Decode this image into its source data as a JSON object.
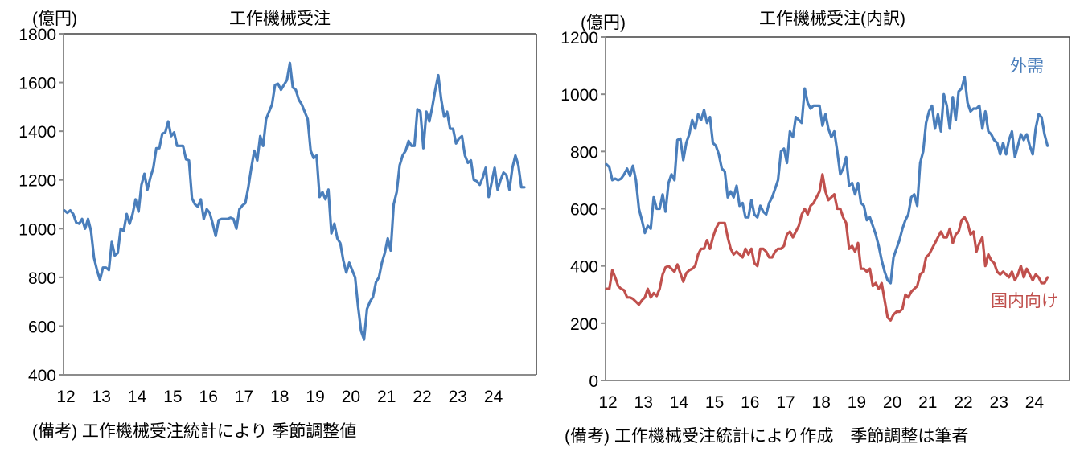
{
  "chart_data": [
    {
      "type": "line",
      "title": "工作機械受注",
      "unit_label": "(億円)",
      "xlabel": "",
      "ylabel": "(億円)",
      "ylim": [
        400,
        1800
      ],
      "yticks": [
        400,
        600,
        800,
        1000,
        1200,
        1400,
        1600,
        1800
      ],
      "xticks": [
        "12",
        "13",
        "14",
        "15",
        "16",
        "17",
        "18",
        "19",
        "20",
        "21",
        "22",
        "23",
        "24"
      ],
      "xlim": [
        2012,
        2024.95
      ],
      "grid": false,
      "note": "(備考) 工作機械受注統計により 季節調整値",
      "series": [
        {
          "name": "工作機械受注",
          "color": "#4a7ebb",
          "x_start": 2012.0,
          "x_step": 0.0833,
          "values": [
            1075,
            1065,
            1075,
            1060,
            1025,
            1020,
            1040,
            1000,
            1040,
            990,
            880,
            830,
            790,
            840,
            840,
            830,
            945,
            890,
            900,
            1000,
            990,
            1060,
            1020,
            1060,
            1120,
            1070,
            1180,
            1225,
            1160,
            1210,
            1250,
            1330,
            1330,
            1390,
            1395,
            1440,
            1380,
            1395,
            1340,
            1340,
            1340,
            1285,
            1280,
            1125,
            1100,
            1090,
            1120,
            1040,
            1080,
            1065,
            1020,
            970,
            1035,
            1040,
            1040,
            1040,
            1045,
            1040,
            1000,
            1080,
            1095,
            1105,
            1170,
            1250,
            1320,
            1280,
            1380,
            1340,
            1450,
            1480,
            1510,
            1590,
            1595,
            1570,
            1590,
            1610,
            1680,
            1580,
            1570,
            1530,
            1510,
            1480,
            1450,
            1320,
            1290,
            1300,
            1130,
            1150,
            1120,
            1160,
            980,
            1020,
            960,
            940,
            870,
            820,
            860,
            830,
            800,
            680,
            580,
            545,
            670,
            700,
            720,
            780,
            800,
            860,
            900,
            960,
            910,
            1100,
            1150,
            1260,
            1300,
            1320,
            1360,
            1340,
            1340,
            1490,
            1480,
            1330,
            1480,
            1440,
            1500,
            1570,
            1630,
            1530,
            1460,
            1480,
            1410,
            1410,
            1350,
            1370,
            1380,
            1300,
            1270,
            1280,
            1200,
            1195,
            1180,
            1210,
            1250,
            1130,
            1190,
            1250,
            1160,
            1200,
            1230,
            1220,
            1160,
            1250,
            1300,
            1260,
            1170,
            1170
          ]
        }
      ]
    },
    {
      "type": "line",
      "title": "工作機械受注(内訳)",
      "unit_label": "(億円)",
      "xlabel": "",
      "ylabel": "(億円)",
      "ylim": [
        0,
        1200
      ],
      "yticks": [
        0,
        200,
        400,
        600,
        800,
        1000,
        1200
      ],
      "xticks": [
        "12",
        "13",
        "14",
        "15",
        "16",
        "17",
        "18",
        "19",
        "20",
        "21",
        "22",
        "23",
        "24"
      ],
      "xlim": [
        2012,
        2024.95
      ],
      "grid": false,
      "note": "(備考) 工作機械受注統計により作成　季節調整は筆者",
      "series": [
        {
          "name": "外需",
          "color": "#4a7ebb",
          "x_start": 2012.0,
          "x_step": 0.0833,
          "values": [
            755,
            745,
            700,
            705,
            700,
            705,
            720,
            740,
            715,
            750,
            700,
            600,
            560,
            515,
            540,
            530,
            640,
            600,
            600,
            650,
            590,
            690,
            720,
            700,
            840,
            845,
            770,
            830,
            860,
            910,
            880,
            930,
            910,
            945,
            900,
            920,
            830,
            820,
            790,
            740,
            730,
            640,
            660,
            640,
            680,
            610,
            620,
            570,
            570,
            630,
            580,
            570,
            610,
            590,
            580,
            620,
            640,
            670,
            700,
            800,
            810,
            760,
            870,
            850,
            920,
            910,
            900,
            1020,
            970,
            950,
            960,
            960,
            960,
            890,
            930,
            880,
            850,
            870,
            800,
            720,
            740,
            780,
            680,
            690,
            650,
            690,
            620,
            610,
            560,
            570,
            540,
            510,
            470,
            420,
            380,
            350,
            340,
            430,
            460,
            490,
            530,
            560,
            580,
            640,
            650,
            610,
            760,
            800,
            900,
            940,
            960,
            880,
            930,
            870,
            1000,
            960,
            880,
            990,
            910,
            1010,
            1020,
            1060,
            970,
            940,
            950,
            950,
            960,
            880,
            940,
            870,
            860,
            840,
            830,
            790,
            830,
            790,
            840,
            870,
            780,
            820,
            860,
            840,
            860,
            820,
            790,
            880,
            930,
            920,
            860,
            820
          ]
        },
        {
          "name": "国内向け",
          "color": "#c0504d",
          "x_start": 2012.0,
          "x_step": 0.0833,
          "values": [
            320,
            320,
            385,
            360,
            330,
            320,
            315,
            290,
            290,
            285,
            275,
            265,
            280,
            290,
            320,
            290,
            305,
            295,
            320,
            370,
            395,
            400,
            390,
            380,
            405,
            375,
            345,
            375,
            385,
            390,
            400,
            440,
            460,
            460,
            490,
            460,
            500,
            530,
            550,
            550,
            550,
            500,
            460,
            440,
            450,
            440,
            430,
            460,
            440,
            460,
            410,
            400,
            460,
            460,
            450,
            430,
            430,
            450,
            460,
            460,
            470,
            510,
            520,
            500,
            520,
            540,
            580,
            600,
            580,
            610,
            620,
            640,
            660,
            720,
            660,
            630,
            640,
            650,
            600,
            600,
            570,
            550,
            460,
            470,
            450,
            480,
            390,
            390,
            380,
            390,
            330,
            340,
            320,
            340,
            280,
            220,
            210,
            230,
            240,
            240,
            250,
            300,
            290,
            310,
            320,
            330,
            370,
            380,
            430,
            440,
            460,
            480,
            500,
            520,
            500,
            500,
            530,
            480,
            510,
            520,
            560,
            570,
            550,
            510,
            520,
            450,
            480,
            500,
            400,
            440,
            420,
            410,
            380,
            370,
            380,
            370,
            360,
            380,
            350,
            370,
            400,
            360,
            390,
            370,
            350,
            370,
            360,
            340,
            340,
            360
          ]
        }
      ],
      "annotations": [
        {
          "text": "外需",
          "color": "#4a7ebb"
        },
        {
          "text": "国内向け",
          "color": "#c0504d"
        }
      ]
    }
  ],
  "left": {
    "title": "工作機械受注",
    "unit": "(億円)",
    "note": "(備考) 工作機械受注統計により 季節調整値"
  },
  "right": {
    "title": "工作機械受注(内訳)",
    "unit": "(億円)",
    "note": "(備考) 工作機械受注統計により作成　季節調整は筆者",
    "label_foreign": "外需",
    "label_domestic": "国内向け"
  }
}
